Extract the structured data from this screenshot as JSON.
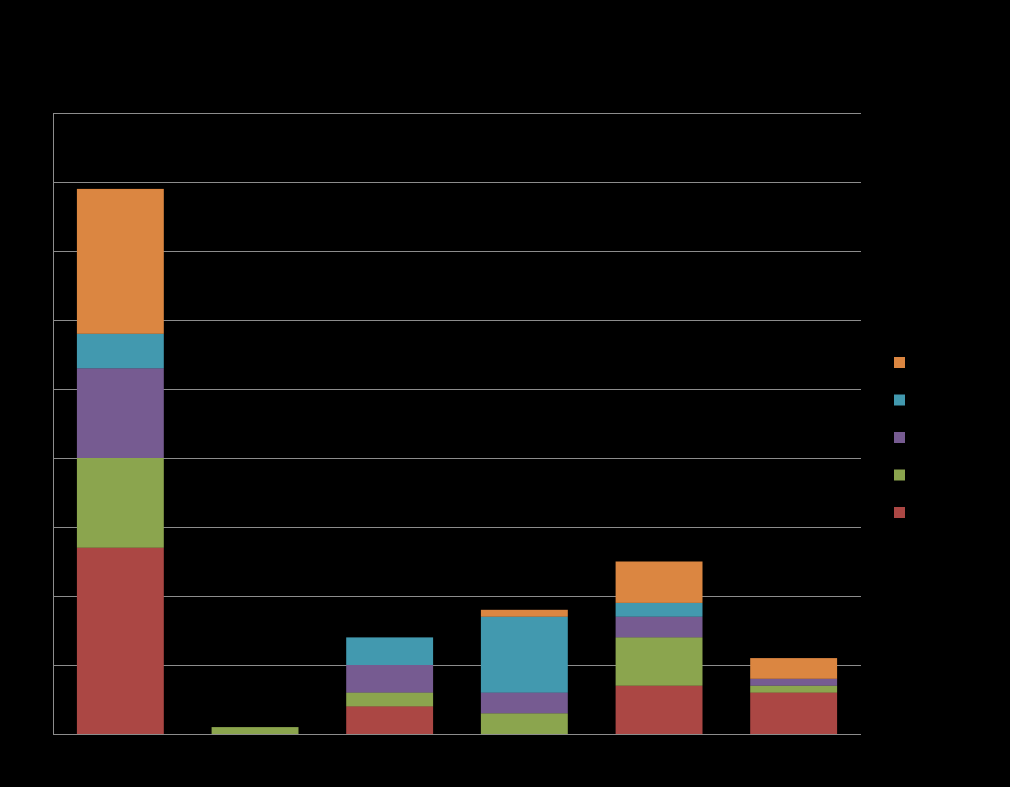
{
  "chart_data": {
    "type": "bar",
    "stacked": true,
    "categories": [
      "",
      "",
      "",
      "",
      "",
      ""
    ],
    "series": [
      {
        "name": "",
        "color": "#ab4744",
        "values": [
          27,
          0,
          4,
          0,
          7,
          6
        ]
      },
      {
        "name": "",
        "color": "#8ba54e",
        "values": [
          13,
          1,
          2,
          3,
          7,
          1
        ]
      },
      {
        "name": "",
        "color": "#765b91",
        "values": [
          13,
          0,
          4,
          3,
          3,
          1
        ]
      },
      {
        "name": "",
        "color": "#4299af",
        "values": [
          5,
          0,
          4,
          11,
          2,
          0
        ]
      },
      {
        "name": "",
        "color": "#db8641",
        "values": [
          21,
          0,
          0,
          1,
          6,
          3
        ]
      }
    ],
    "ylim": [
      0,
      90
    ],
    "grid": true,
    "legend_position": "right",
    "title": "",
    "xlabel": "",
    "ylabel": ""
  }
}
